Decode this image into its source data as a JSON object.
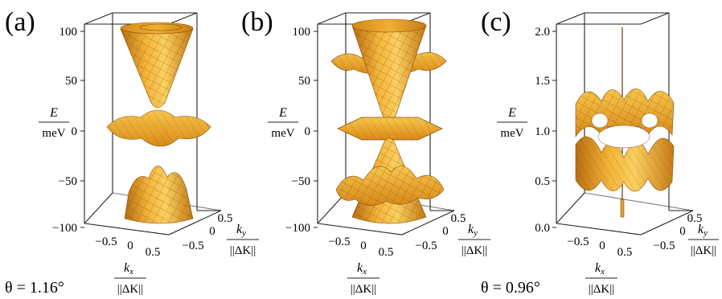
{
  "figure": {
    "panels": [
      {
        "label": "(a)",
        "theta": "θ = 1.16°",
        "energy_axis": {
          "numerator": "E",
          "denominator": "meV",
          "ticks": [
            "100",
            "50",
            "0",
            "−50",
            "−100"
          ],
          "range": [
            -100,
            100
          ]
        },
        "kx_axis": {
          "numerator": "k",
          "sub": "x",
          "denominator": "||ΔK||",
          "ticks": [
            "−0.5",
            "0",
            "0.5"
          ]
        },
        "ky_axis": {
          "numerator": "k",
          "sub": "y",
          "denominator": "||ΔK||",
          "ticks": [
            "−0.5",
            "0",
            "0.5"
          ]
        }
      },
      {
        "label": "(b)",
        "theta": "",
        "energy_axis": {
          "numerator": "E",
          "denominator": "meV",
          "ticks": [
            "100",
            "50",
            "0",
            "−50",
            "−100"
          ],
          "range": [
            -100,
            100
          ]
        },
        "kx_axis": {
          "numerator": "k",
          "sub": "x",
          "denominator": "||ΔK||",
          "ticks": [
            "−0.5",
            "0",
            "0.5"
          ]
        },
        "ky_axis": {
          "numerator": "k",
          "sub": "y",
          "denominator": "||ΔK||",
          "ticks": [
            "−0.5",
            "0",
            "0.5"
          ]
        }
      },
      {
        "label": "(c)",
        "theta": "θ = 0.96°",
        "energy_axis": {
          "numerator": "E",
          "denominator": "meV",
          "ticks": [
            "2.0",
            "1.5",
            "1.0",
            "0.5",
            "0.0"
          ],
          "range": [
            0,
            2
          ]
        },
        "kx_axis": {
          "numerator": "k",
          "sub": "x",
          "denominator": "||ΔK||",
          "ticks": [
            "−0.5",
            "0",
            "0.5"
          ]
        },
        "ky_axis": {
          "numerator": "k",
          "sub": "y",
          "denominator": "||ΔK||",
          "ticks": [
            "−0.5",
            "0",
            "0.5"
          ]
        }
      }
    ],
    "colors": {
      "surface_light": "#f7c040",
      "surface_mid": "#e79a1e",
      "surface_dark": "#a8620e",
      "mesh": "#6a3a08",
      "box": "#222222"
    }
  }
}
